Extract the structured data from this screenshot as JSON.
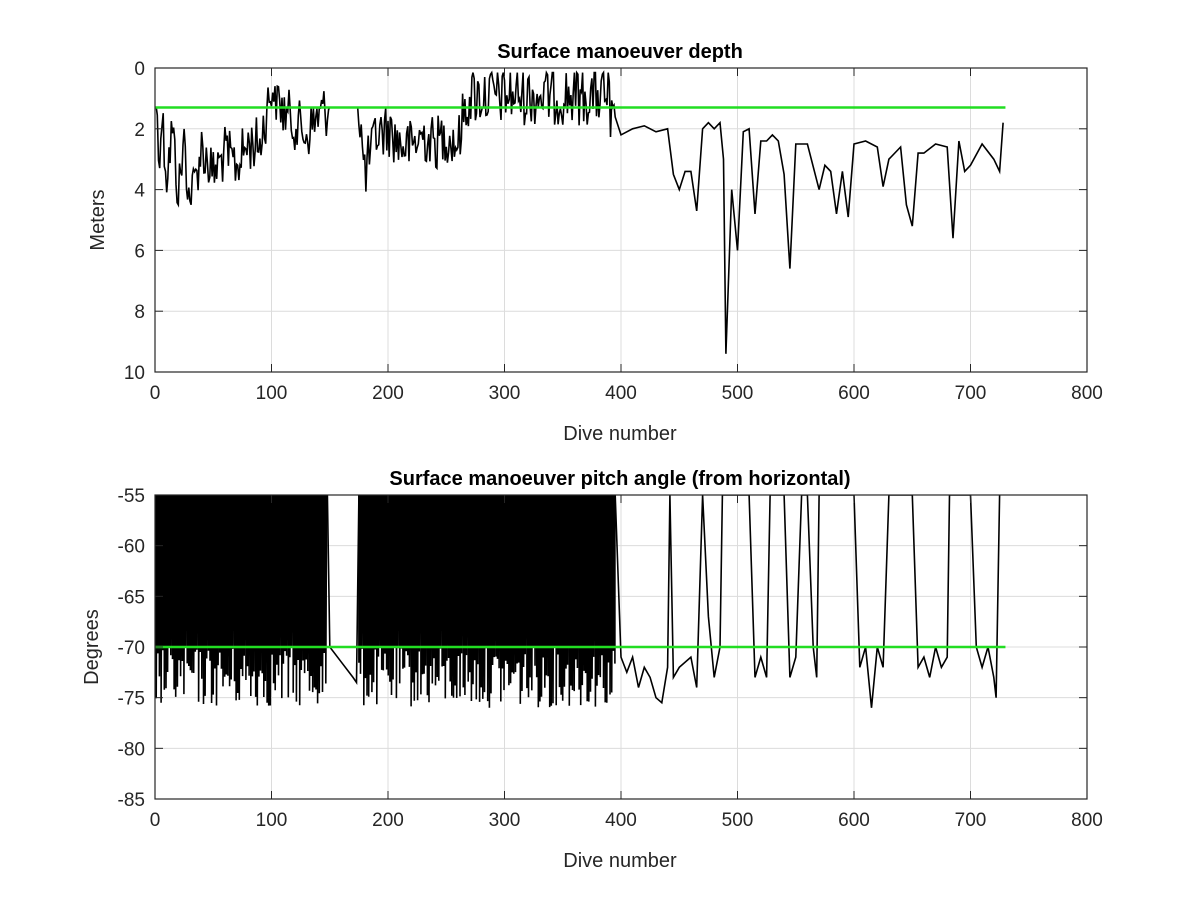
{
  "chart_data": [
    {
      "type": "line",
      "title": "Surface manoeuver depth",
      "xlabel": "Dive number",
      "ylabel": "Meters",
      "xlim": [
        0,
        800
      ],
      "ylim": [
        0,
        10
      ],
      "y_reversed": true,
      "grid": true,
      "xticks": [
        "0",
        "100",
        "200",
        "300",
        "400",
        "500",
        "600",
        "700",
        "800"
      ],
      "yticks": [
        "0",
        "2",
        "4",
        "6",
        "8",
        "10"
      ],
      "series": [
        {
          "color": "#000000",
          "noisy_x_range": [
            1,
            395
          ],
          "x": [
            1,
            3,
            6,
            10,
            15,
            20,
            25,
            30,
            40,
            50,
            60,
            70,
            80,
            90,
            95,
            100,
            110,
            120,
            130,
            140,
            150,
            160,
            170,
            175,
            180,
            190,
            200,
            210,
            220,
            230,
            240,
            250,
            260,
            265,
            270,
            280,
            290,
            300,
            310,
            320,
            330,
            340,
            350,
            360,
            370,
            380,
            385,
            390,
            392,
            395,
            400,
            410,
            420,
            430,
            440,
            445,
            450,
            455,
            460,
            465,
            470,
            475,
            480,
            485,
            488,
            490,
            495,
            500,
            505,
            510,
            515,
            520,
            525,
            530,
            535,
            540,
            545,
            550,
            560,
            570,
            575,
            580,
            585,
            590,
            595,
            600,
            610,
            620,
            625,
            630,
            640,
            645,
            650,
            655,
            660,
            670,
            680,
            685,
            690,
            695,
            700,
            710,
            720,
            725,
            728
          ],
          "y": [
            1.0,
            2.8,
            1.6,
            3.5,
            2.0,
            4.2,
            2.4,
            4.5,
            2.6,
            3.5,
            2.8,
            3.2,
            2.5,
            2.5,
            1.6,
            0.6,
            1.4,
            1.8,
            2.2,
            1.6,
            1.3,
            1.3,
            1.3,
            1.3,
            3.5,
            2.2,
            2.0,
            2.5,
            2.6,
            2.2,
            2.5,
            2.2,
            2.5,
            1.5,
            1.0,
            1.5,
            1.2,
            0.2,
            1.0,
            0.4,
            1.2,
            0.3,
            1.0,
            0.5,
            1.1,
            0.3,
            1.4,
            3.6,
            1.8,
            2.0,
            2.2,
            2.0,
            1.9,
            2.1,
            2.0,
            3.5,
            4.0,
            3.4,
            3.4,
            4.7,
            2.0,
            1.8,
            2.0,
            1.8,
            3.0,
            9.4,
            4.0,
            6.0,
            2.1,
            2.0,
            4.8,
            2.4,
            2.4,
            2.2,
            2.4,
            3.5,
            6.6,
            2.5,
            2.5,
            4.0,
            3.2,
            3.4,
            4.8,
            3.4,
            4.9,
            2.5,
            2.4,
            2.6,
            3.9,
            3.0,
            2.6,
            4.5,
            5.2,
            2.8,
            2.8,
            2.5,
            2.6,
            5.6,
            2.4,
            3.4,
            3.2,
            2.5,
            3.0,
            3.4,
            1.8
          ]
        },
        {
          "color": "#22dd22",
          "x": [
            0,
            730
          ],
          "y": [
            1.3,
            1.3
          ]
        }
      ]
    },
    {
      "type": "line",
      "title": "Surface manoeuver pitch angle (from horizontal)",
      "xlabel": "Dive number",
      "ylabel": "Degrees",
      "xlim": [
        0,
        800
      ],
      "ylim": [
        -85,
        -55
      ],
      "grid": true,
      "xticks": [
        "0",
        "100",
        "200",
        "300",
        "400",
        "500",
        "600",
        "700",
        "800"
      ],
      "yticks": [
        "-55",
        "-60",
        "-65",
        "-70",
        "-75",
        "-80",
        "-85"
      ],
      "series": [
        {
          "color": "#000000",
          "dense_ranges": [
            [
              1,
              148
            ],
            [
              175,
              395
            ]
          ],
          "x": [
            148,
            150,
            160,
            170,
            173,
            175,
            395,
            400,
            405,
            410,
            415,
            420,
            425,
            430,
            435,
            440,
            442,
            445,
            450,
            460,
            465,
            470,
            475,
            480,
            485,
            487,
            490,
            500,
            510,
            515,
            520,
            525,
            528,
            530,
            540,
            545,
            550,
            555,
            560,
            565,
            568,
            570,
            580,
            590,
            600,
            605,
            610,
            615,
            620,
            625,
            630,
            650,
            655,
            660,
            665,
            670,
            675,
            680,
            682,
            685,
            690,
            695,
            700,
            705,
            710,
            715,
            720,
            722,
            725
          ],
          "y": [
            -55,
            -70,
            -71.5,
            -73,
            -73.5,
            -55,
            -55,
            -71,
            -72.5,
            -71,
            -74,
            -72,
            -73,
            -75,
            -75.5,
            -72,
            -55,
            -73,
            -72,
            -71,
            -74,
            -55,
            -67,
            -73,
            -70,
            -55,
            -55,
            -55,
            -55,
            -73,
            -71,
            -73,
            -55,
            -55,
            -55,
            -73,
            -71,
            -55,
            -55,
            -70,
            -73,
            -55,
            -55,
            -55,
            -55,
            -72,
            -70,
            -76,
            -70,
            -72,
            -55,
            -55,
            -72,
            -71,
            -73,
            -70,
            -72,
            -71,
            -55,
            -55,
            -55,
            -55,
            -55,
            -70,
            -72,
            -70,
            -73,
            -75,
            -55
          ]
        },
        {
          "color": "#22dd22",
          "x": [
            0,
            730
          ],
          "y": [
            -70,
            -70
          ]
        }
      ]
    }
  ]
}
